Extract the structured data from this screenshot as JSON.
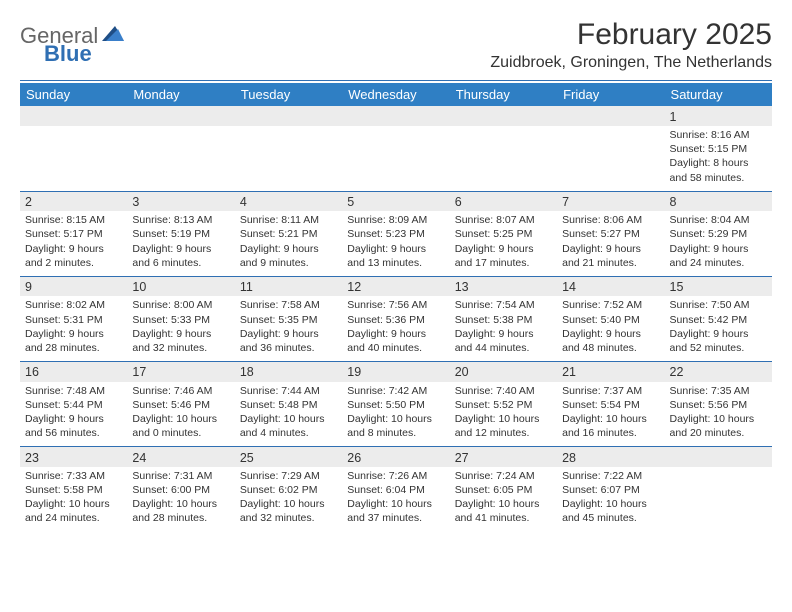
{
  "brand": {
    "line1": "General",
    "line2": "Blue",
    "colors": {
      "general": "#666666",
      "blue": "#2f6fb3",
      "tri_dark": "#1f4e86",
      "tri_light": "#3a7fca"
    }
  },
  "title": "February 2025",
  "location": "Zuidbroek, Groningen, The Netherlands",
  "style": {
    "header_bg": "#2f7fc4",
    "header_text": "#ffffff",
    "weekrow_bg": "#ececec",
    "rule_color": "#2f6fb3",
    "body_text": "#333333",
    "page_bg": "#ffffff",
    "title_fontsize": 30,
    "location_fontsize": 16,
    "dayhdr_fontsize": 13,
    "daynum_fontsize": 12.5,
    "detail_fontsize": 10.5
  },
  "day_headers": [
    "Sunday",
    "Monday",
    "Tuesday",
    "Wednesday",
    "Thursday",
    "Friday",
    "Saturday"
  ],
  "weeks": [
    {
      "nums": [
        "",
        "",
        "",
        "",
        "",
        "",
        "1"
      ],
      "cells": [
        null,
        null,
        null,
        null,
        null,
        null,
        {
          "sunrise": "8:16 AM",
          "sunset": "5:15 PM",
          "daylight": "8 hours and 58 minutes."
        }
      ]
    },
    {
      "nums": [
        "2",
        "3",
        "4",
        "5",
        "6",
        "7",
        "8"
      ],
      "cells": [
        {
          "sunrise": "8:15 AM",
          "sunset": "5:17 PM",
          "daylight": "9 hours and 2 minutes."
        },
        {
          "sunrise": "8:13 AM",
          "sunset": "5:19 PM",
          "daylight": "9 hours and 6 minutes."
        },
        {
          "sunrise": "8:11 AM",
          "sunset": "5:21 PM",
          "daylight": "9 hours and 9 minutes."
        },
        {
          "sunrise": "8:09 AM",
          "sunset": "5:23 PM",
          "daylight": "9 hours and 13 minutes."
        },
        {
          "sunrise": "8:07 AM",
          "sunset": "5:25 PM",
          "daylight": "9 hours and 17 minutes."
        },
        {
          "sunrise": "8:06 AM",
          "sunset": "5:27 PM",
          "daylight": "9 hours and 21 minutes."
        },
        {
          "sunrise": "8:04 AM",
          "sunset": "5:29 PM",
          "daylight": "9 hours and 24 minutes."
        }
      ]
    },
    {
      "nums": [
        "9",
        "10",
        "11",
        "12",
        "13",
        "14",
        "15"
      ],
      "cells": [
        {
          "sunrise": "8:02 AM",
          "sunset": "5:31 PM",
          "daylight": "9 hours and 28 minutes."
        },
        {
          "sunrise": "8:00 AM",
          "sunset": "5:33 PM",
          "daylight": "9 hours and 32 minutes."
        },
        {
          "sunrise": "7:58 AM",
          "sunset": "5:35 PM",
          "daylight": "9 hours and 36 minutes."
        },
        {
          "sunrise": "7:56 AM",
          "sunset": "5:36 PM",
          "daylight": "9 hours and 40 minutes."
        },
        {
          "sunrise": "7:54 AM",
          "sunset": "5:38 PM",
          "daylight": "9 hours and 44 minutes."
        },
        {
          "sunrise": "7:52 AM",
          "sunset": "5:40 PM",
          "daylight": "9 hours and 48 minutes."
        },
        {
          "sunrise": "7:50 AM",
          "sunset": "5:42 PM",
          "daylight": "9 hours and 52 minutes."
        }
      ]
    },
    {
      "nums": [
        "16",
        "17",
        "18",
        "19",
        "20",
        "21",
        "22"
      ],
      "cells": [
        {
          "sunrise": "7:48 AM",
          "sunset": "5:44 PM",
          "daylight": "9 hours and 56 minutes."
        },
        {
          "sunrise": "7:46 AM",
          "sunset": "5:46 PM",
          "daylight": "10 hours and 0 minutes."
        },
        {
          "sunrise": "7:44 AM",
          "sunset": "5:48 PM",
          "daylight": "10 hours and 4 minutes."
        },
        {
          "sunrise": "7:42 AM",
          "sunset": "5:50 PM",
          "daylight": "10 hours and 8 minutes."
        },
        {
          "sunrise": "7:40 AM",
          "sunset": "5:52 PM",
          "daylight": "10 hours and 12 minutes."
        },
        {
          "sunrise": "7:37 AM",
          "sunset": "5:54 PM",
          "daylight": "10 hours and 16 minutes."
        },
        {
          "sunrise": "7:35 AM",
          "sunset": "5:56 PM",
          "daylight": "10 hours and 20 minutes."
        }
      ]
    },
    {
      "nums": [
        "23",
        "24",
        "25",
        "26",
        "27",
        "28",
        ""
      ],
      "cells": [
        {
          "sunrise": "7:33 AM",
          "sunset": "5:58 PM",
          "daylight": "10 hours and 24 minutes."
        },
        {
          "sunrise": "7:31 AM",
          "sunset": "6:00 PM",
          "daylight": "10 hours and 28 minutes."
        },
        {
          "sunrise": "7:29 AM",
          "sunset": "6:02 PM",
          "daylight": "10 hours and 32 minutes."
        },
        {
          "sunrise": "7:26 AM",
          "sunset": "6:04 PM",
          "daylight": "10 hours and 37 minutes."
        },
        {
          "sunrise": "7:24 AM",
          "sunset": "6:05 PM",
          "daylight": "10 hours and 41 minutes."
        },
        {
          "sunrise": "7:22 AM",
          "sunset": "6:07 PM",
          "daylight": "10 hours and 45 minutes."
        },
        null
      ]
    }
  ],
  "labels": {
    "sunrise": "Sunrise:",
    "sunset": "Sunset:",
    "daylight": "Daylight:"
  }
}
